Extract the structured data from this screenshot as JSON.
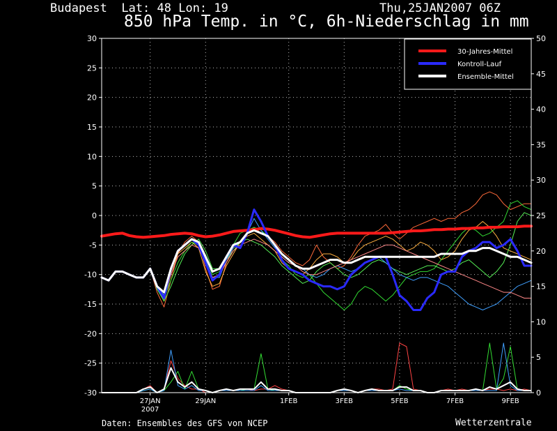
{
  "header": {
    "location": "Budapest  Lat: 48 Lon: 19",
    "date": "Thu,25JAN2007 06Z",
    "title": "850 hPa Temp. in °C, 6h-Niederschlag in mm"
  },
  "footer": {
    "credit_left": "Daten: Ensembles des GFS von NCEP",
    "credit_right": "Wetterzentrale"
  },
  "colors": {
    "background": "#000000",
    "climatology": "#ff1a1a",
    "control": "#2a2aff",
    "ensemble_mean": "#ffffff",
    "grid": "#bbbbbb"
  },
  "chart_data": {
    "type": "line",
    "title": "850 hPa Temp. in °C, 6h-Niederschlag in mm",
    "x_start": "25JAN2007 06Z",
    "x_step_hours": 6,
    "x_ticks": [
      {
        "label": "27JAN",
        "sublabel": "2007",
        "hours": 42
      },
      {
        "label": "29JAN",
        "hours": 90
      },
      {
        "label": "1FEB",
        "hours": 162
      },
      {
        "label": "3FEB",
        "hours": 210
      },
      {
        "label": "5FEB",
        "hours": 258
      },
      {
        "label": "7FEB",
        "hours": 306
      },
      {
        "label": "9FEB",
        "hours": 354
      }
    ],
    "x_range_hours": [
      0,
      372
    ],
    "y_left": {
      "label": "°C",
      "min": -30,
      "max": 30,
      "ticks": [
        -30,
        -25,
        -20,
        -15,
        -10,
        -5,
        0,
        5,
        10,
        15,
        20,
        25,
        30
      ]
    },
    "y_right": {
      "label": "mm",
      "min": 0,
      "max": 50,
      "ticks": [
        0,
        5,
        10,
        15,
        20,
        25,
        30,
        35,
        40,
        45,
        50
      ]
    },
    "grid": true,
    "legend_position": "top-right",
    "legend": [
      {
        "name": "30-Jahres-Mittel",
        "color": "#ff1a1a"
      },
      {
        "name": "Kontroll-Lauf",
        "color": "#2a2aff"
      },
      {
        "name": "Ensemble-Mittel",
        "color": "#ffffff"
      }
    ],
    "temperature_series": [
      {
        "name": "30-Jahres-Mittel",
        "color": "#ff1a1a",
        "width": 4,
        "values": [
          -3.5,
          -3.3,
          -3.1,
          -3.0,
          -3.4,
          -3.6,
          -3.7,
          -3.6,
          -3.5,
          -3.4,
          -3.2,
          -3.1,
          -3.0,
          -3.1,
          -3.4,
          -3.6,
          -3.5,
          -3.3,
          -3.0,
          -2.7,
          -2.6,
          -2.5,
          -2.4,
          -2.2,
          -2.3,
          -2.5,
          -2.8,
          -3.1,
          -3.4,
          -3.6,
          -3.7,
          -3.5,
          -3.3,
          -3.1,
          -3.0,
          -3.0,
          -3.0,
          -3.0,
          -3.0,
          -3.0,
          -3.0,
          -3.0,
          -2.9,
          -2.8,
          -2.7,
          -2.6,
          -2.6,
          -2.5,
          -2.4,
          -2.4,
          -2.3,
          -2.3,
          -2.2,
          -2.2,
          -2.1,
          -2.1,
          -2.0,
          -2.0,
          -1.9,
          -1.9,
          -1.9,
          -1.8,
          -1.8
        ]
      },
      {
        "name": "Kontroll-Lauf",
        "color": "#2a2aff",
        "width": 3,
        "values": [
          -10.5,
          -11.0,
          -9.5,
          -9.5,
          -10.0,
          -10.5,
          -10.5,
          -9.0,
          -12.0,
          -14.0,
          -9.0,
          -6.0,
          -5.0,
          -4.0,
          -5.0,
          -8.0,
          -11.0,
          -10.0,
          -7.0,
          -5.0,
          -5.5,
          -3.0,
          1.0,
          -1.0,
          -3.5,
          -5.0,
          -7.5,
          -9.0,
          -9.5,
          -10.0,
          -11.0,
          -11.5,
          -12.0,
          -12.0,
          -12.5,
          -12.0,
          -10.0,
          -9.0,
          -8.0,
          -7.5,
          -7.0,
          -7.0,
          -10.0,
          -13.5,
          -14.5,
          -16.0,
          -16.0,
          -14.0,
          -13.0,
          -10.0,
          -9.5,
          -9.5,
          -7.0,
          -6.0,
          -5.5,
          -4.5,
          -4.5,
          -5.5,
          -5.0,
          -4.0,
          -6.0,
          -8.5,
          -8.5
        ]
      },
      {
        "name": "Ensemble-Mittel",
        "color": "#ffffff",
        "width": 3,
        "values": [
          -10.5,
          -11.0,
          -9.5,
          -9.5,
          -10.0,
          -10.5,
          -10.5,
          -9.0,
          -12.0,
          -13.0,
          -9.0,
          -6.0,
          -5.0,
          -4.0,
          -4.5,
          -7.0,
          -9.5,
          -9.0,
          -7.0,
          -5.0,
          -4.5,
          -3.0,
          -2.5,
          -3.0,
          -3.5,
          -5.0,
          -6.5,
          -7.5,
          -8.5,
          -9.0,
          -9.0,
          -8.5,
          -8.0,
          -7.5,
          -7.5,
          -8.0,
          -8.0,
          -7.5,
          -7.0,
          -7.0,
          -7.0,
          -7.0,
          -7.0,
          -7.0,
          -7.0,
          -7.0,
          -7.0,
          -7.0,
          -7.0,
          -6.5,
          -6.5,
          -6.5,
          -6.5,
          -6.0,
          -6.0,
          -5.5,
          -5.5,
          -6.0,
          -6.5,
          -7.0,
          -7.0,
          -7.5,
          -8.0
        ]
      },
      {
        "name": "",
        "color": "#ff6a3a",
        "width": 1,
        "values": [
          -10.5,
          -11.0,
          -9.5,
          -9.5,
          -10.0,
          -10.5,
          -10.5,
          -9.0,
          -13.0,
          -15.5,
          -11.0,
          -6.5,
          -4.5,
          -3.5,
          -4.5,
          -9.0,
          -12.5,
          -12.0,
          -8.0,
          -5.5,
          -4.5,
          -3.0,
          -2.0,
          -3.0,
          -3.5,
          -4.5,
          -6.0,
          -7.0,
          -8.0,
          -8.5,
          -7.5,
          -5.0,
          -7.0,
          -8.0,
          -9.0,
          -8.5,
          -7.0,
          -5.0,
          -3.5,
          -3.0,
          -2.5,
          -1.5,
          -3.0,
          -4.0,
          -3.0,
          -2.0,
          -1.5,
          -1.0,
          -0.5,
          -1.0,
          -0.5,
          -0.5,
          0.5,
          1.0,
          2.0,
          3.5,
          4.0,
          3.5,
          2.0,
          1.0,
          1.5,
          2.0,
          2.0
        ]
      },
      {
        "name": "",
        "color": "#ffb040",
        "width": 1,
        "values": [
          -10.5,
          -11.0,
          -9.5,
          -9.5,
          -10.0,
          -10.5,
          -10.5,
          -9.0,
          -12.0,
          -14.5,
          -10.0,
          -6.5,
          -5.5,
          -4.5,
          -5.5,
          -9.5,
          -12.0,
          -11.5,
          -8.5,
          -6.5,
          -4.5,
          -3.5,
          -3.0,
          -4.0,
          -5.0,
          -6.0,
          -8.0,
          -9.0,
          -9.5,
          -10.0,
          -9.0,
          -7.5,
          -6.5,
          -6.5,
          -7.0,
          -8.0,
          -7.5,
          -6.0,
          -5.0,
          -4.5,
          -4.0,
          -3.5,
          -4.0,
          -5.0,
          -6.0,
          -5.5,
          -4.5,
          -5.0,
          -6.0,
          -7.5,
          -7.0,
          -6.0,
          -4.0,
          -2.5,
          -2.0,
          -1.0,
          -2.0,
          -3.5,
          -5.5,
          -6.0,
          -6.5,
          -7.0,
          -7.5
        ]
      },
      {
        "name": "",
        "color": "#33dd33",
        "width": 1,
        "values": [
          -10.5,
          -11.0,
          -9.5,
          -9.5,
          -10.0,
          -10.5,
          -10.5,
          -9.0,
          -12.5,
          -14.0,
          -11.0,
          -8.0,
          -6.0,
          -4.5,
          -5.0,
          -7.0,
          -10.0,
          -9.5,
          -7.0,
          -5.0,
          -3.0,
          -2.5,
          -2.0,
          -2.5,
          -3.5,
          -5.0,
          -7.5,
          -8.5,
          -10.0,
          -10.5,
          -10.0,
          -11.5,
          -13.0,
          -14.0,
          -15.0,
          -16.0,
          -15.0,
          -13.0,
          -12.0,
          -12.5,
          -13.5,
          -14.5,
          -13.5,
          -12.0,
          -10.5,
          -10.0,
          -9.5,
          -9.5,
          -9.0,
          -7.5,
          -6.0,
          -4.5,
          -3.0,
          -2.0,
          -2.5,
          -3.5,
          -3.0,
          -2.0,
          -1.0,
          2.0,
          2.5,
          1.5,
          1.0
        ]
      },
      {
        "name": "",
        "color": "#55ee55",
        "width": 1,
        "values": [
          -10.5,
          -11.0,
          -9.5,
          -9.5,
          -10.0,
          -10.5,
          -10.5,
          -9.0,
          -12.5,
          -14.5,
          -12.0,
          -9.0,
          -6.5,
          -5.0,
          -4.0,
          -6.0,
          -9.0,
          -9.0,
          -7.5,
          -6.0,
          -4.5,
          -4.0,
          -4.5,
          -5.0,
          -6.0,
          -7.0,
          -8.5,
          -9.5,
          -10.5,
          -11.5,
          -11.0,
          -9.5,
          -8.5,
          -8.0,
          -9.0,
          -10.0,
          -10.5,
          -10.0,
          -9.0,
          -8.0,
          -7.5,
          -8.0,
          -9.0,
          -9.5,
          -10.0,
          -9.5,
          -9.0,
          -8.5,
          -8.5,
          -9.0,
          -9.5,
          -9.0,
          -8.0,
          -7.5,
          -8.5,
          -9.5,
          -10.5,
          -9.5,
          -8.0,
          -5.0,
          -1.0,
          0.5,
          0.0
        ]
      },
      {
        "name": "",
        "color": "#40a0ff",
        "width": 1,
        "values": [
          -10.5,
          -11.0,
          -9.5,
          -9.5,
          -10.0,
          -10.5,
          -10.5,
          -9.0,
          -12.0,
          -13.5,
          -9.5,
          -6.0,
          -5.0,
          -4.0,
          -5.0,
          -7.5,
          -10.5,
          -10.5,
          -7.5,
          -5.5,
          -4.5,
          -3.0,
          -0.5,
          -2.5,
          -4.0,
          -5.5,
          -7.0,
          -8.0,
          -8.5,
          -9.0,
          -10.0,
          -10.5,
          -10.0,
          -9.0,
          -8.5,
          -9.0,
          -9.5,
          -9.0,
          -8.0,
          -7.5,
          -7.0,
          -8.0,
          -9.0,
          -10.0,
          -10.5,
          -11.0,
          -10.5,
          -10.5,
          -11.0,
          -11.5,
          -12.0,
          -13.0,
          -14.0,
          -15.0,
          -15.5,
          -16.0,
          -15.5,
          -15.0,
          -14.0,
          -13.0,
          -12.0,
          -11.5,
          -11.0
        ]
      },
      {
        "name": "",
        "color": "#ff8888",
        "width": 1,
        "values": [
          -10.5,
          -11.0,
          -9.5,
          -9.5,
          -10.0,
          -10.5,
          -10.5,
          -9.0,
          -12.0,
          -13.0,
          -10.0,
          -7.0,
          -6.0,
          -5.0,
          -5.5,
          -8.0,
          -10.5,
          -10.0,
          -8.0,
          -6.0,
          -5.0,
          -4.5,
          -4.0,
          -4.5,
          -5.0,
          -6.0,
          -7.0,
          -8.0,
          -8.5,
          -9.5,
          -10.0,
          -10.0,
          -9.5,
          -9.0,
          -8.5,
          -8.0,
          -7.5,
          -7.0,
          -6.5,
          -6.0,
          -5.5,
          -5.0,
          -5.0,
          -5.5,
          -6.0,
          -6.5,
          -7.0,
          -7.5,
          -8.0,
          -8.5,
          -9.0,
          -9.5,
          -10.0,
          -10.5,
          -11.0,
          -11.5,
          -12.0,
          -12.5,
          -13.0,
          -13.0,
          -13.5,
          -14.0,
          -14.0
        ]
      }
    ],
    "precipitation_series": [
      {
        "name": "",
        "color": "#ff4444",
        "values": [
          0,
          0,
          0,
          0,
          0,
          0,
          0.5,
          1.0,
          0,
          0.5,
          4.5,
          2.0,
          1.0,
          0.5,
          0.5,
          0,
          0,
          0.3,
          0.5,
          0.3,
          0.5,
          0.5,
          0.3,
          0.5,
          0.5,
          1.0,
          0.5,
          0.3,
          0,
          0,
          0,
          0,
          0,
          0,
          0.3,
          0.5,
          0.3,
          0,
          0.3,
          0.5,
          0.5,
          0.3,
          0.5,
          7.0,
          6.5,
          0.5,
          0.3,
          0,
          0,
          0.3,
          0.5,
          0.3,
          0.5,
          0.3,
          0.5,
          0.3,
          0.5,
          0.5,
          0.3,
          0.5,
          0.3,
          0.5,
          0.3
        ]
      },
      {
        "name": "",
        "color": "#33dd33",
        "values": [
          0,
          0,
          0,
          0,
          0,
          0,
          0.3,
          0.5,
          0,
          0.3,
          1.5,
          3.0,
          0.5,
          3.0,
          0.5,
          0.3,
          0,
          0.3,
          0.5,
          0.3,
          0.3,
          0.5,
          0.5,
          5.5,
          0.5,
          0.3,
          0.3,
          0.3,
          0,
          0,
          0,
          0,
          0,
          0,
          0.3,
          0.3,
          0.3,
          0,
          0.3,
          0.5,
          0.3,
          0.3,
          0.3,
          1.0,
          0.5,
          0.3,
          0.3,
          0,
          0,
          0.3,
          0.3,
          0.3,
          0.3,
          0.3,
          0.3,
          0.3,
          7.0,
          0.5,
          2.0,
          6.5,
          0.5,
          0.3,
          0.3
        ]
      },
      {
        "name": "",
        "color": "#40a0ff",
        "values": [
          0,
          0,
          0,
          0,
          0,
          0,
          0.3,
          0.5,
          0,
          0.3,
          6.0,
          1.0,
          0.5,
          1.0,
          0.3,
          0.3,
          0,
          0.3,
          0.3,
          0.3,
          0.3,
          0.3,
          0.3,
          1.0,
          0.3,
          0.3,
          0.3,
          0.3,
          0,
          0,
          0,
          0,
          0,
          0,
          0.3,
          0.3,
          0.3,
          0,
          0.3,
          0.3,
          0.3,
          0.3,
          0.3,
          0.5,
          0.3,
          0.3,
          0.3,
          0,
          0,
          0.3,
          0.3,
          0.3,
          0.3,
          0.3,
          0.3,
          0.3,
          0.3,
          0.3,
          7.0,
          1.0,
          0.3,
          0.3,
          0.3
        ]
      },
      {
        "name": "Ensemble-Mittel",
        "color": "#ffffff",
        "values": [
          0,
          0,
          0,
          0,
          0,
          0,
          0.5,
          0.8,
          0,
          0.5,
          3.5,
          1.5,
          0.8,
          1.5,
          0.5,
          0.3,
          0,
          0.3,
          0.5,
          0.3,
          0.5,
          0.5,
          0.5,
          1.5,
          0.5,
          0.5,
          0.3,
          0.3,
          0,
          0,
          0,
          0,
          0,
          0,
          0.3,
          0.5,
          0.3,
          0,
          0.3,
          0.5,
          0.3,
          0.3,
          0.3,
          0.8,
          0.8,
          0.3,
          0.3,
          0,
          0,
          0.3,
          0.3,
          0.3,
          0.3,
          0.3,
          0.5,
          0.3,
          0.8,
          0.5,
          1.0,
          1.5,
          0.5,
          0.3,
          0.3
        ]
      }
    ]
  }
}
